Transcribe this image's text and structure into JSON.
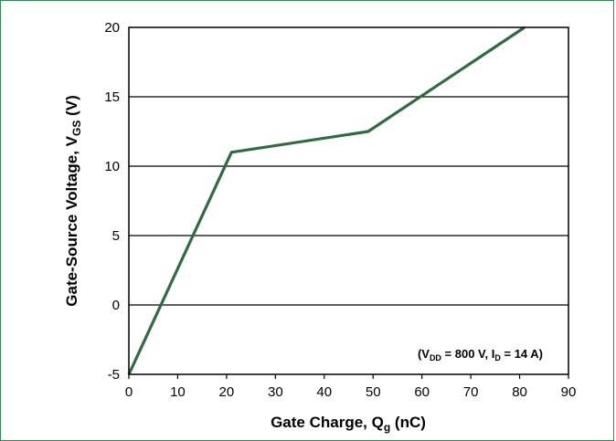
{
  "chart_data": {
    "type": "line",
    "title": "",
    "xlabel": "Gate Charge, Q",
    "xlabel_sub": "g",
    "xlabel_unit": " (nC)",
    "ylabel": "Gate-Source Voltage, V",
    "ylabel_sub": "GS",
    "ylabel_unit": " (V)",
    "xlim": [
      0,
      90
    ],
    "ylim": [
      -5,
      20
    ],
    "x_ticks": [
      0,
      10,
      20,
      30,
      40,
      50,
      60,
      70,
      80,
      90
    ],
    "y_ticks": [
      -5,
      0,
      5,
      10,
      15,
      20
    ],
    "grid": "horizontal",
    "series": [
      {
        "color": "#2f6b3f",
        "x": [
          0,
          21,
          49,
          81
        ],
        "y": [
          -5,
          11,
          12.5,
          20
        ]
      }
    ],
    "annotation": {
      "open": "(V",
      "vdd_sub": "DD",
      "mid": " = 800 V, I",
      "id_sub": "D",
      "close": " = 14 A)"
    }
  }
}
